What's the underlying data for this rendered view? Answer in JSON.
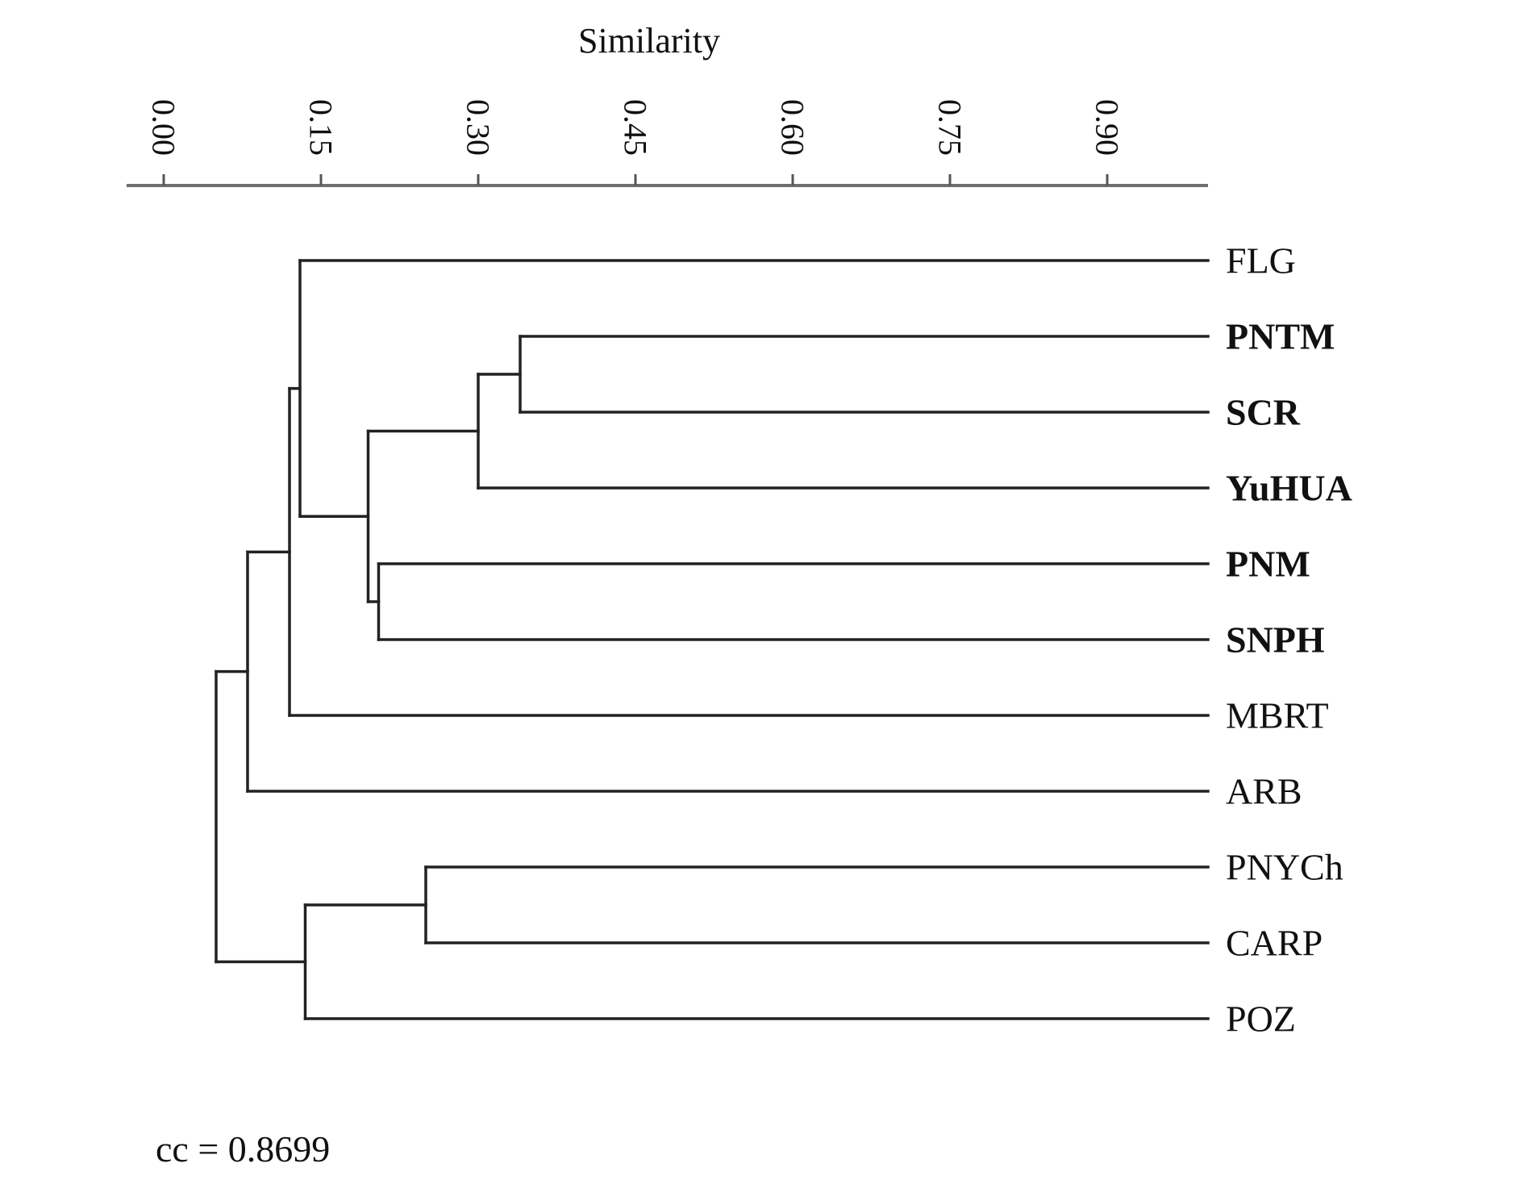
{
  "diagram": {
    "type": "dendrogram",
    "axis": {
      "title": "Similarity",
      "range": [
        -0.04,
        1.0
      ],
      "ticks": [
        {
          "value": 0.0,
          "label": "0.00"
        },
        {
          "value": 0.15,
          "label": "0.15"
        },
        {
          "value": 0.3,
          "label": "0.30"
        },
        {
          "value": 0.45,
          "label": "0.45"
        },
        {
          "value": 0.6,
          "label": "0.60"
        },
        {
          "value": 0.75,
          "label": "0.75"
        },
        {
          "value": 0.9,
          "label": "0.90"
        }
      ]
    },
    "leaves": [
      {
        "id": "FLG",
        "label": "FLG",
        "bold": false
      },
      {
        "id": "PNTM",
        "label": "PNTM",
        "bold": true
      },
      {
        "id": "SCR",
        "label": "SCR",
        "bold": true
      },
      {
        "id": "YuHUA",
        "label": "YuHUA",
        "bold": true
      },
      {
        "id": "PNM",
        "label": "PNM",
        "bold": true
      },
      {
        "id": "SNPH",
        "label": "SNPH",
        "bold": true
      },
      {
        "id": "MBRT",
        "label": "MBRT",
        "bold": false
      },
      {
        "id": "ARB",
        "label": "ARB",
        "bold": false
      },
      {
        "id": "PNYCh",
        "label": "PNYCh",
        "bold": false
      },
      {
        "id": "CARP",
        "label": "CARP",
        "bold": false
      },
      {
        "id": "POZ",
        "label": "POZ",
        "bold": false
      }
    ],
    "merges": [
      {
        "id": "n1",
        "children": [
          "PNTM",
          "SCR"
        ],
        "similarity": 0.34
      },
      {
        "id": "n2",
        "children": [
          "n1",
          "YuHUA"
        ],
        "similarity": 0.3
      },
      {
        "id": "n3",
        "children": [
          "PNM",
          "SNPH"
        ],
        "similarity": 0.205
      },
      {
        "id": "n4",
        "children": [
          "n2",
          "n3"
        ],
        "similarity": 0.195
      },
      {
        "id": "n5",
        "children": [
          "FLG",
          "n4"
        ],
        "similarity": 0.13
      },
      {
        "id": "n6",
        "children": [
          "n5",
          "MBRT"
        ],
        "similarity": 0.12
      },
      {
        "id": "n7",
        "children": [
          "n6",
          "ARB"
        ],
        "similarity": 0.08
      },
      {
        "id": "n8",
        "children": [
          "PNYCh",
          "CARP"
        ],
        "similarity": 0.25
      },
      {
        "id": "n9",
        "children": [
          "n8",
          "POZ"
        ],
        "similarity": 0.135
      },
      {
        "id": "n10",
        "children": [
          "n7",
          "n9"
        ],
        "similarity": 0.05
      }
    ],
    "cophenetic": "cc = 0.8699"
  }
}
